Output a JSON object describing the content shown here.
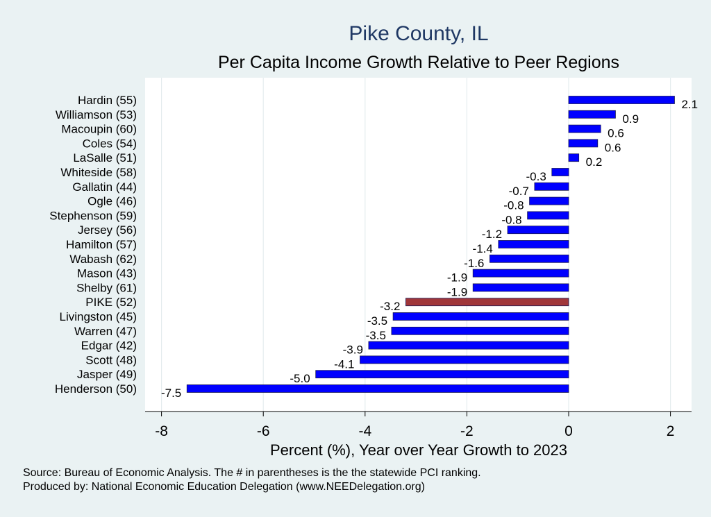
{
  "chart_data": {
    "type": "bar",
    "orientation": "horizontal",
    "title": "Pike County, IL",
    "subtitle": "Per Capita Income Growth Relative to Peer Regions",
    "xlabel": "Percent (%), Year over Year Growth to 2023",
    "ylabel": "",
    "xlim": [
      -8.3,
      2.4
    ],
    "xticks": [
      -8,
      -6,
      -4,
      -2,
      0,
      2
    ],
    "grid": true,
    "categories": [
      "Hardin (55)",
      "Williamson (53)",
      "Macoupin (60)",
      "Coles (54)",
      "LaSalle (51)",
      "Whiteside (58)",
      "Gallatin (44)",
      "Ogle (46)",
      "Stephenson (59)",
      "Jersey (56)",
      "Hamilton (57)",
      "Wabash (62)",
      "Mason (43)",
      "Shelby (61)",
      "PIKE (52)",
      "Livingston (45)",
      "Warren (47)",
      "Edgar (42)",
      "Scott (48)",
      "Jasper (49)",
      "Henderson (50)"
    ],
    "values": [
      2.08,
      0.92,
      0.63,
      0.57,
      0.2,
      -0.33,
      -0.67,
      -0.77,
      -0.81,
      -1.2,
      -1.38,
      -1.55,
      -1.88,
      -1.88,
      -3.2,
      -3.45,
      -3.48,
      -3.93,
      -4.1,
      -4.97,
      -7.5
    ],
    "value_labels": [
      "2.1",
      "0.9",
      "0.6",
      "0.6",
      "0.2",
      "-0.3",
      "-0.7",
      "-0.8",
      "-0.8",
      "-1.2",
      "-1.4",
      "-1.6",
      "-1.9",
      "-1.9",
      "-3.2",
      "-3.5",
      "-3.5",
      "-3.9",
      "-4.1",
      "-5.0",
      "-7.5"
    ],
    "highlight": "PIKE (52)",
    "colors": {
      "bar": "#0000ff",
      "highlight": "#a0363a",
      "bar_edge": "#1a1a55",
      "background": "#eaf2f3",
      "plot_bg": "#ffffff"
    }
  },
  "notes": {
    "source": "Source: Bureau of Economic Analysis. The # in parentheses is the the statewide PCI ranking.",
    "produced_by": "Produced by: National Economic Education Delegation (www.NEEDelegation.org)"
  }
}
